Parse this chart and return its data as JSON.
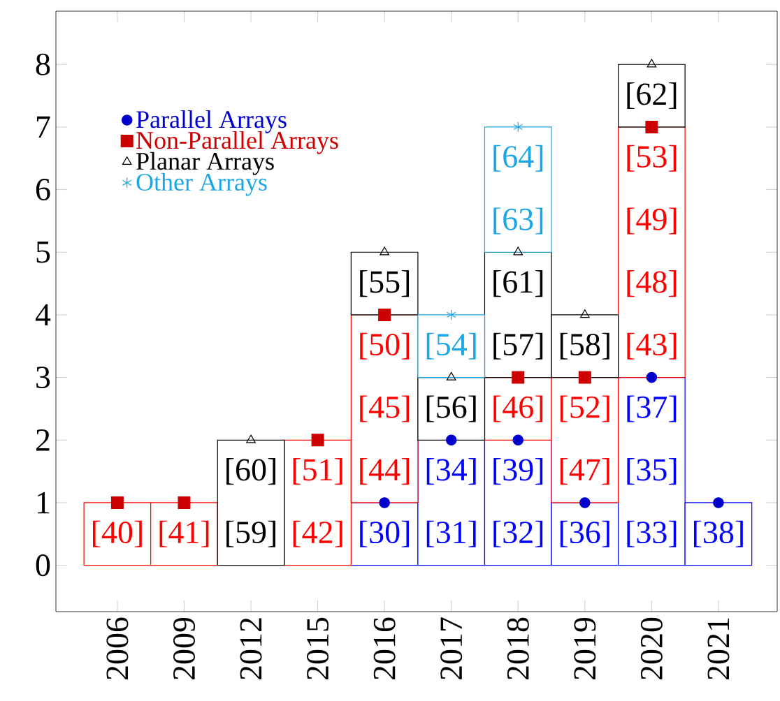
{
  "chart_data": {
    "type": "bar",
    "stacked": true,
    "categories": [
      "2006",
      "2009",
      "2012",
      "2015",
      "2016",
      "2017",
      "2018",
      "2019",
      "2020",
      "2021"
    ],
    "series": [
      {
        "color": "#0000ff",
        "values": [
          0,
          0,
          0,
          0,
          1,
          2,
          2,
          1,
          3,
          1
        ]
      },
      {
        "color": "#ff0000",
        "values": [
          1,
          1,
          0,
          2,
          3,
          0,
          1,
          2,
          4,
          0
        ]
      },
      {
        "color": "#000000",
        "values": [
          0,
          0,
          2,
          0,
          1,
          1,
          2,
          1,
          1,
          0
        ]
      },
      {
        "color": "#1ba6e6",
        "values": [
          0,
          0,
          0,
          0,
          0,
          1,
          2,
          0,
          0,
          0
        ]
      },
      {
        "type": "scatter",
        "name": "Parallel Arrays",
        "color": "#0000cc",
        "marker": "circle",
        "values": [
          null,
          null,
          null,
          null,
          1,
          2,
          2,
          1,
          3,
          1
        ]
      },
      {
        "type": "scatter",
        "name": "Non-Parallel Arrays",
        "color": "#cc0000",
        "marker": "square",
        "values": [
          1,
          1,
          null,
          2,
          4,
          null,
          3,
          3,
          7,
          null
        ]
      },
      {
        "type": "scatter",
        "name": "Planar Arrays",
        "color": "#000000",
        "marker": "triangle",
        "values": [
          null,
          null,
          2,
          null,
          5,
          3,
          5,
          4,
          8,
          null
        ]
      },
      {
        "type": "scatter",
        "name": "Other Arrays",
        "color": "#1ba6e6",
        "marker": "cross",
        "values": [
          null,
          null,
          null,
          null,
          null,
          4,
          7,
          null,
          null,
          null
        ]
      }
    ],
    "ylim": [
      -0.74,
      8.85
    ],
    "yticks": [
      0,
      1,
      2,
      3,
      4,
      5,
      6,
      7,
      8
    ],
    "legend": "top left",
    "annotations": [
      "[40]",
      "[41]",
      "[59]",
      "[60]",
      "[42]",
      "[51]",
      "[30]",
      "[44]",
      "[45]",
      "[50]",
      "[55]",
      "[31]",
      "[34]",
      "[56]",
      "[54]",
      "[32]",
      "[39]",
      "[46]",
      "[57]",
      "[61]",
      "[63]",
      "[64]",
      "[36]",
      "[47]",
      "[52]",
      "[58]",
      "[33]",
      "[35]",
      "[37]",
      "[43]",
      "[48]",
      "[49]",
      "[53]",
      "[62]",
      "[38]"
    ]
  }
}
